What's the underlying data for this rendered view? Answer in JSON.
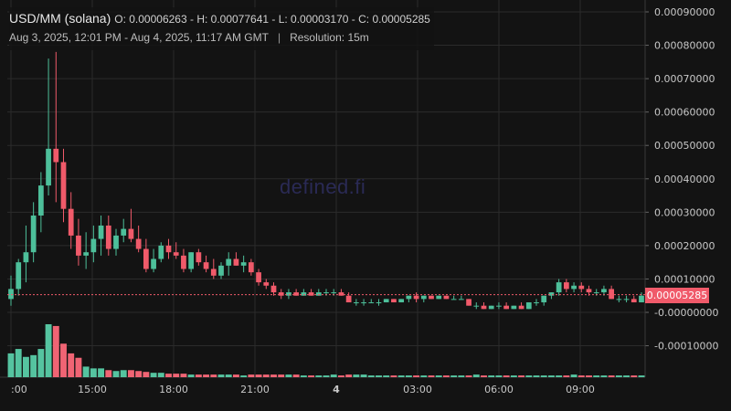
{
  "legend": {
    "symbol": "USD/MM (solana)",
    "ohlc": "O: 0.00006263 - H: 0.00077641 - L: 0.00003170 - C: 0.00005285",
    "date_range": "Aug 3, 2025, 12:01 PM - Aug 4, 2025, 11:17 AM GMT",
    "separator": "|",
    "resolution": "Resolution: 15m"
  },
  "watermark": "defined.fi",
  "last_price": "0.00005285",
  "colors": {
    "up": "#4dbf9a",
    "down": "#f05a6a",
    "up_volume": "#55c4a0",
    "down_volume": "#f06474",
    "grid": "#2b2b2b",
    "text": "#c8c8c8",
    "current_line": "#f05a6a"
  },
  "chart_data": {
    "type": "candlestick",
    "x_tick_labels": [
      ":00",
      "15:00",
      "18:00",
      "21:00",
      "4",
      "03:00",
      "06:00",
      "09:00"
    ],
    "y_tick_labels": [
      "0.00090000",
      "0.00080000",
      "0.00070000",
      "0.00060000",
      "0.00050000",
      "0.00040000",
      "0.00030000",
      "0.00020000",
      "0.00010000",
      "-0.00000000",
      "-0.00010000"
    ],
    "y_ticks": [
      0.0009,
      0.0008,
      0.0007,
      0.0006,
      0.0005,
      0.0004,
      0.0003,
      0.0002,
      0.0001,
      0,
      -0.0001
    ],
    "ylim": [
      -0.00012,
      0.00092
    ],
    "last_value": 5.285e-05,
    "candles": [
      [
        4e-05,
        0.00011,
        2e-05,
        7e-05
      ],
      [
        7e-05,
        0.00016,
        5e-05,
        0.00015
      ],
      [
        0.00015,
        0.00026,
        9e-05,
        0.00018
      ],
      [
        0.00018,
        0.00033,
        0.00015,
        0.00029
      ],
      [
        0.00029,
        0.00042,
        0.00024,
        0.00038
      ],
      [
        0.00038,
        0.00076,
        0.00035,
        0.00049
      ],
      [
        0.00049,
        0.00078,
        0.00033,
        0.00045
      ],
      [
        0.00045,
        0.00049,
        0.00027,
        0.00031
      ],
      [
        0.00031,
        0.00036,
        0.00019,
        0.00023
      ],
      [
        0.00023,
        0.00028,
        0.00014,
        0.00017
      ],
      [
        0.00017,
        0.00024,
        0.00013,
        0.00018
      ],
      [
        0.00018,
        0.00026,
        0.00015,
        0.00022
      ],
      [
        0.00022,
        0.00029,
        0.00017,
        0.00026
      ],
      [
        0.00026,
        0.00029,
        0.00017,
        0.00019
      ],
      [
        0.00019,
        0.00025,
        0.00017,
        0.00023
      ],
      [
        0.00023,
        0.00028,
        0.00021,
        0.00025
      ],
      [
        0.00025,
        0.00031,
        0.00021,
        0.00022
      ],
      [
        0.00022,
        0.00026,
        0.00018,
        0.00019
      ],
      [
        0.00019,
        0.00022,
        0.00012,
        0.00013
      ],
      [
        0.00013,
        0.00019,
        0.00012,
        0.00016
      ],
      [
        0.00016,
        0.00021,
        0.00015,
        0.0002
      ],
      [
        0.0002,
        0.00022,
        0.00016,
        0.00018
      ],
      [
        0.00018,
        0.00021,
        0.00016,
        0.00017
      ],
      [
        0.00017,
        0.00019,
        0.00012,
        0.00013
      ],
      [
        0.00013,
        0.00018,
        0.00012,
        0.00018
      ],
      [
        0.00018,
        0.00019,
        0.00014,
        0.00015
      ],
      [
        0.00015,
        0.00017,
        0.00012,
        0.00013
      ],
      [
        0.00013,
        0.00016,
        0.0001,
        0.00011
      ],
      [
        0.00011,
        0.00015,
        0.0001,
        0.00014
      ],
      [
        0.00014,
        0.00018,
        0.00011,
        0.00016
      ],
      [
        0.00016,
        0.00018,
        0.00014,
        0.00014
      ],
      [
        0.00014,
        0.00017,
        0.00012,
        0.00015
      ],
      [
        0.00015,
        0.00016,
        0.00011,
        0.00012
      ],
      [
        0.00012,
        0.00013,
        8e-05,
        9e-05
      ],
      [
        9e-05,
        0.0001,
        7e-05,
        8e-05
      ],
      [
        8e-05,
        9e-05,
        5e-05,
        6e-05
      ],
      [
        6e-05,
        7e-05,
        4e-05,
        5e-05
      ],
      [
        5e-05,
        7e-05,
        4e-05,
        6e-05
      ],
      [
        6e-05,
        7e-05,
        5e-05,
        5e-05
      ],
      [
        5e-05,
        7e-05,
        5e-05,
        6e-05
      ],
      [
        6e-05,
        7e-05,
        5e-05,
        5e-05
      ],
      [
        5e-05,
        7e-05,
        5e-05,
        6e-05
      ],
      [
        6e-05,
        7e-05,
        5e-05,
        6e-05
      ],
      [
        6e-05,
        7e-05,
        5e-05,
        6e-05
      ],
      [
        6e-05,
        7e-05,
        5e-05,
        5e-05
      ],
      [
        5e-05,
        6e-05,
        3e-05,
        3e-05
      ],
      [
        3e-05,
        4e-05,
        2e-05,
        3e-05
      ],
      [
        3e-05,
        4e-05,
        2e-05,
        3e-05
      ],
      [
        3e-05,
        4e-05,
        3e-05,
        3e-05
      ],
      [
        3e-05,
        4e-05,
        2e-05,
        3e-05
      ],
      [
        3e-05,
        4e-05,
        3e-05,
        4e-05
      ],
      [
        4e-05,
        4e-05,
        3e-05,
        3e-05
      ],
      [
        3e-05,
        4e-05,
        3e-05,
        4e-05
      ],
      [
        4e-05,
        5e-05,
        3e-05,
        5e-05
      ],
      [
        5e-05,
        6e-05,
        3e-05,
        4e-05
      ],
      [
        4e-05,
        5e-05,
        3e-05,
        5e-05
      ],
      [
        5e-05,
        5e-05,
        4e-05,
        4e-05
      ],
      [
        4e-05,
        5e-05,
        4e-05,
        5e-05
      ],
      [
        5e-05,
        5e-05,
        4e-05,
        4e-05
      ],
      [
        4e-05,
        5e-05,
        4e-05,
        4e-05
      ],
      [
        4e-05,
        5e-05,
        4e-05,
        4e-05
      ],
      [
        4e-05,
        4e-05,
        2e-05,
        2e-05
      ],
      [
        2e-05,
        3e-05,
        1e-05,
        2e-05
      ],
      [
        2e-05,
        3e-05,
        1e-05,
        1e-05
      ],
      [
        1e-05,
        2e-05,
        1e-05,
        2e-05
      ],
      [
        2e-05,
        3e-05,
        1e-05,
        2e-05
      ],
      [
        2e-05,
        3e-05,
        1e-05,
        1e-05
      ],
      [
        1e-05,
        2e-05,
        1e-05,
        2e-05
      ],
      [
        2e-05,
        3e-05,
        1e-05,
        1e-05
      ],
      [
        1e-05,
        3e-05,
        1e-05,
        3e-05
      ],
      [
        3e-05,
        4e-05,
        2e-05,
        3e-05
      ],
      [
        3e-05,
        5e-05,
        2e-05,
        5e-05
      ],
      [
        5e-05,
        6e-05,
        4e-05,
        6e-05
      ],
      [
        6e-05,
        0.0001,
        5e-05,
        9e-05
      ],
      [
        9e-05,
        0.0001,
        6e-05,
        7e-05
      ],
      [
        7e-05,
        9e-05,
        6e-05,
        8e-05
      ],
      [
        8e-05,
        9e-05,
        6e-05,
        7e-05
      ],
      [
        7e-05,
        8e-05,
        5e-05,
        6e-05
      ],
      [
        6e-05,
        7e-05,
        5e-05,
        6e-05
      ],
      [
        6e-05,
        8e-05,
        5e-05,
        7e-05
      ],
      [
        7e-05,
        8e-05,
        4e-05,
        4e-05
      ],
      [
        4e-05,
        5e-05,
        3e-05,
        4e-05
      ],
      [
        4e-05,
        5e-05,
        3e-05,
        4e-05
      ],
      [
        4e-05,
        5e-05,
        3e-05,
        3e-05
      ],
      [
        3e-05,
        6e-05,
        3e-05,
        5e-05
      ]
    ],
    "volume": [
      27,
      32,
      23,
      25,
      32,
      60,
      58,
      38,
      27,
      22,
      12,
      10,
      10,
      8,
      7,
      8,
      8,
      7,
      6,
      5,
      5,
      4,
      4,
      4,
      3,
      3,
      3,
      3,
      3,
      3,
      3,
      2,
      3,
      3,
      3,
      3,
      3,
      3,
      3,
      2,
      2,
      2,
      2,
      3,
      2,
      3,
      3,
      3,
      2,
      2,
      2,
      2,
      2,
      2,
      2,
      2,
      2,
      2,
      2,
      2,
      2,
      2,
      3,
      2,
      2,
      2,
      2,
      2,
      2,
      2,
      2,
      2,
      2,
      2,
      2,
      3,
      2,
      2,
      2,
      2,
      2,
      2,
      2,
      2,
      2
    ]
  }
}
